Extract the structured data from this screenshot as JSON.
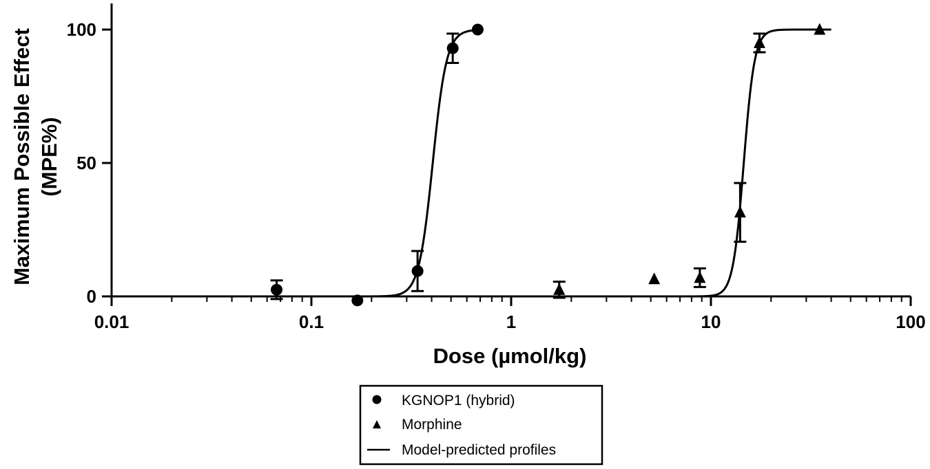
{
  "chart_data": {
    "type": "scatter",
    "xscale": "log",
    "xlim": [
      0.01,
      100
    ],
    "ylim": [
      0,
      110
    ],
    "xticks": [
      {
        "value": 0.01,
        "label": "0.01"
      },
      {
        "value": 0.1,
        "label": "0.1"
      },
      {
        "value": 1,
        "label": "1"
      },
      {
        "value": 10,
        "label": "10"
      },
      {
        "value": 100,
        "label": "100"
      }
    ],
    "yticks": [
      {
        "value": 0,
        "label": "0"
      },
      {
        "value": 50,
        "label": "50"
      },
      {
        "value": 100,
        "label": "100"
      }
    ],
    "xlabel": "Dose (µmol/kg)",
    "ylabel_line1": "Maximum Possible Effect",
    "ylabel_line2": "(MPE%)",
    "legend_position": "bottom-center",
    "grid": false,
    "series": [
      {
        "name": "KGNOP1 (hybrid)",
        "marker": "circle",
        "color": "#000000",
        "points": [
          {
            "x": 0.067,
            "y": 2.5,
            "err": 3.5
          },
          {
            "x": 0.17,
            "y": -1.5,
            "err": 0
          },
          {
            "x": 0.34,
            "y": 9.5,
            "err": 7.5
          },
          {
            "x": 0.51,
            "y": 93,
            "err": 5.5
          },
          {
            "x": 0.68,
            "y": 100,
            "err": 0
          }
        ],
        "fit": {
          "ec50": 0.405,
          "hill": 12.5,
          "bottom": 0,
          "top": 100,
          "xmin": 0.01,
          "xmax": 0.69
        }
      },
      {
        "name": "Morphine",
        "marker": "triangle",
        "color": "#000000",
        "points": [
          {
            "x": 1.74,
            "y": 2.5,
            "err": 3
          },
          {
            "x": 5.2,
            "y": 6.5,
            "err": 0
          },
          {
            "x": 8.8,
            "y": 7,
            "err": 3.5
          },
          {
            "x": 14,
            "y": 31.5,
            "err": 11
          },
          {
            "x": 17.5,
            "y": 95,
            "err": 3.5
          },
          {
            "x": 35,
            "y": 100,
            "err": 0
          }
        ],
        "fit": {
          "ec50": 14.6,
          "hill": 16,
          "bottom": 0,
          "top": 100,
          "xmin": 0.69,
          "xmax": 40
        }
      }
    ],
    "legend": [
      {
        "label": "KGNOP1 (hybrid)",
        "symbol": "circle"
      },
      {
        "label": "Morphine",
        "symbol": "triangle"
      },
      {
        "label": "Model-predicted profiles",
        "symbol": "line"
      }
    ]
  }
}
